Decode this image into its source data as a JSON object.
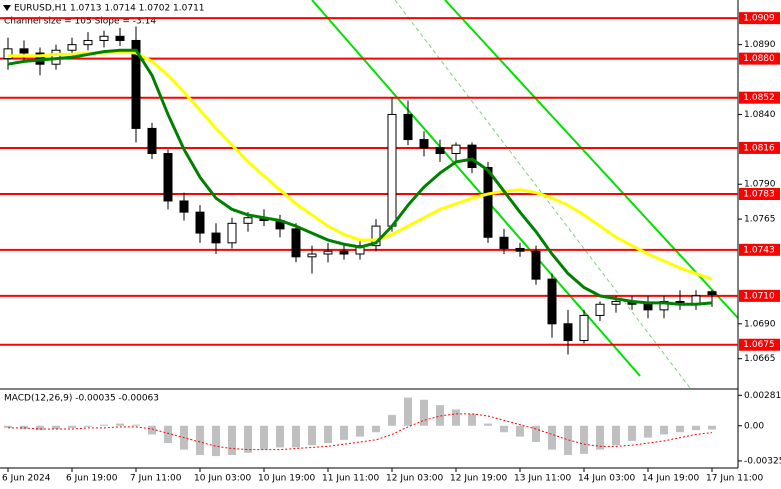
{
  "chart_data": [
    {
      "type": "candlestick",
      "title": "EURUSD,H1  1.0713 1.0714 1.0702 1.0711",
      "subtitle": "Channel size = 105 Slope = -3.14",
      "categories": [
        "6 Jun 2024",
        null,
        null,
        null,
        "6 Jun 19:00",
        null,
        null,
        null,
        "7 Jun 11:00",
        null,
        null,
        null,
        "10 Jun 03:00",
        null,
        null,
        null,
        "10 Jun 19:00",
        null,
        null,
        null,
        "11 Jun 11:00",
        null,
        null,
        null,
        "12 Jun 03:00",
        null,
        null,
        null,
        "12 Jun 19:00",
        null,
        null,
        null,
        "13 Jun 11:00",
        null,
        null,
        null,
        "14 Jun 03:00",
        null,
        null,
        null,
        "14 Jun 19:00",
        null,
        null,
        null,
        "17 Jun 11:00"
      ],
      "open": [
        1.088,
        1.0887,
        1.0884,
        1.0876,
        1.0886,
        1.089,
        1.0893,
        1.0896,
        1.0893,
        1.083,
        1.0812,
        1.0778,
        1.077,
        1.0755,
        1.0748,
        1.0762,
        1.0766,
        1.0764,
        1.0758,
        1.0738,
        1.074,
        1.0742,
        1.074,
        1.0746,
        1.076,
        1.084,
        1.0822,
        1.0816,
        1.0812,
        1.0818,
        1.0802,
        1.0752,
        1.0744,
        1.0742,
        1.0722,
        1.069,
        1.0678,
        1.0696,
        1.0704,
        1.0706,
        1.0704,
        1.07,
        1.0706,
        1.0704,
        1.0713
      ],
      "high": [
        1.0895,
        1.0893,
        1.0888,
        1.089,
        1.0895,
        1.0899,
        1.09,
        1.0902,
        1.0903,
        1.0834,
        1.0815,
        1.0784,
        1.0775,
        1.0762,
        1.0766,
        1.077,
        1.0772,
        1.0768,
        1.0762,
        1.0746,
        1.0748,
        1.0747,
        1.075,
        1.0765,
        1.0852,
        1.085,
        1.0828,
        1.0822,
        1.082,
        1.082,
        1.0806,
        1.0758,
        1.0748,
        1.0746,
        1.0726,
        1.07,
        1.07,
        1.0706,
        1.071,
        1.071,
        1.071,
        1.071,
        1.0714,
        1.0714,
        1.0714
      ],
      "low": [
        1.0872,
        1.0878,
        1.0868,
        1.0872,
        1.0882,
        1.0886,
        1.0888,
        1.0889,
        1.082,
        1.0808,
        1.0772,
        1.0764,
        1.0748,
        1.074,
        1.0744,
        1.0756,
        1.076,
        1.0752,
        1.0734,
        1.0726,
        1.0734,
        1.0736,
        1.0736,
        1.0742,
        1.0756,
        1.0818,
        1.081,
        1.0806,
        1.0806,
        1.0798,
        1.0748,
        1.074,
        1.0738,
        1.0718,
        1.068,
        1.0668,
        1.0676,
        1.0692,
        1.0698,
        1.07,
        1.0694,
        1.0694,
        1.07,
        1.07,
        1.0702
      ],
      "close": [
        1.0887,
        1.0884,
        1.0876,
        1.0886,
        1.089,
        1.0893,
        1.0896,
        1.0893,
        1.083,
        1.0812,
        1.0778,
        1.077,
        1.0755,
        1.0748,
        1.0762,
        1.0766,
        1.0764,
        1.0758,
        1.0738,
        1.074,
        1.0742,
        1.074,
        1.0746,
        1.076,
        1.084,
        1.0822,
        1.0816,
        1.0812,
        1.0818,
        1.0802,
        1.0752,
        1.0744,
        1.0742,
        1.0722,
        1.069,
        1.0678,
        1.0696,
        1.0704,
        1.0706,
        1.0704,
        1.07,
        1.0706,
        1.0704,
        1.071,
        1.0711
      ],
      "lines": [
        {
          "color": "#ffff00",
          "values": [
            1.0882,
            1.0882,
            1.0882,
            1.0883,
            1.0883,
            1.0884,
            1.0884,
            1.0885,
            1.0884,
            1.0878,
            1.0868,
            1.0856,
            1.0843,
            1.083,
            1.0818,
            1.0806,
            1.0796,
            1.0786,
            1.0776,
            1.0768,
            1.076,
            1.0754,
            1.075,
            1.075,
            1.0754,
            1.076,
            1.0766,
            1.0772,
            1.0776,
            1.078,
            1.0783,
            1.0785,
            1.0786,
            1.0784,
            1.078,
            1.0775,
            1.0768,
            1.076,
            1.0752,
            1.0746,
            1.074,
            1.0735,
            1.073,
            1.0726,
            1.0722
          ]
        },
        {
          "color": "#008000",
          "values": [
            1.0876,
            1.0878,
            1.0879,
            1.088,
            1.0881,
            1.0883,
            1.0885,
            1.0886,
            1.0886,
            1.0868,
            1.084,
            1.0815,
            1.0795,
            1.078,
            1.0772,
            1.0768,
            1.0766,
            1.0764,
            1.076,
            1.0755,
            1.075,
            1.0747,
            1.0745,
            1.0748,
            1.076,
            1.0775,
            1.0788,
            1.0798,
            1.0806,
            1.0808,
            1.08,
            1.0785,
            1.077,
            1.0756,
            1.074,
            1.0726,
            1.0716,
            1.071,
            1.0708,
            1.0706,
            1.0705,
            1.0705,
            1.0704,
            1.0704,
            1.0705
          ]
        }
      ],
      "levels": {
        "color": "#ff0000",
        "values": [
          {
            "value": 1.0909,
            "label": "1.0909"
          },
          {
            "value": 1.088,
            "label": "1.0880"
          },
          {
            "value": 1.0852,
            "label": "1.0852"
          },
          {
            "value": 1.0816,
            "label": "1.0816"
          },
          {
            "value": 1.0783,
            "label": "1.0783"
          },
          {
            "value": 1.0743,
            "label": "1.0743"
          },
          {
            "value": 1.071,
            "label": "1.0710"
          },
          {
            "value": 1.0675,
            "label": "1.0675"
          }
        ]
      },
      "ylim": [
        1.0644,
        1.0922
      ],
      "yticks": [
        {
          "value": 1.089,
          "label": "1.0890"
        },
        {
          "value": 1.084,
          "label": "1.0840"
        },
        {
          "value": 1.079,
          "label": "1.0790"
        },
        1.0765,
        {
          "value": 1.069,
          "label": "1.0690"
        },
        1.0665
      ]
    },
    {
      "type": "macd",
      "title": "MACD(12,26,9) -0.00035 -0.00063",
      "color": "#c0c0c0",
      "values": [
        -0.0002,
        -0.0003,
        -0.0004,
        -0.0003,
        -0.0002,
        -0.0001,
        0.0001,
        0.0002,
        0.0001,
        -0.0008,
        -0.0016,
        -0.0022,
        -0.0027,
        -0.0028,
        -0.0027,
        -0.0025,
        -0.0022,
        -0.002,
        -0.002,
        -0.0018,
        -0.0016,
        -0.0013,
        -0.001,
        -0.0006,
        0.001,
        0.0026,
        0.0024,
        0.0019,
        0.0015,
        0.0011,
        0.0002,
        -0.0006,
        -0.001,
        -0.0015,
        -0.0022,
        -0.0027,
        -0.0026,
        -0.0022,
        -0.0018,
        -0.0014,
        -0.0011,
        -0.0008,
        -0.0006,
        -0.0004,
        -0.00035
      ],
      "signal": {
        "color": "#ff0000",
        "values": [
          -0.0002,
          -0.0002,
          -0.0003,
          -0.0003,
          -0.0003,
          -0.0002,
          -0.0002,
          -0.0001,
          -0.0001,
          -0.0003,
          -0.0007,
          -0.0011,
          -0.0015,
          -0.0019,
          -0.0021,
          -0.0022,
          -0.0022,
          -0.0022,
          -0.0021,
          -0.002,
          -0.0019,
          -0.0017,
          -0.0015,
          -0.0013,
          -0.0008,
          -0.0001,
          0.0005,
          0.0009,
          0.0011,
          0.0011,
          0.0009,
          0.0005,
          0.0001,
          -0.0003,
          -0.0008,
          -0.0013,
          -0.0017,
          -0.0019,
          -0.0019,
          -0.0018,
          -0.0016,
          -0.0014,
          -0.0011,
          -0.0008,
          -0.00063
        ]
      },
      "ylim": [
        -0.0039,
        0.0033
      ],
      "yticks": [
        0.00281,
        {
          "value": 0,
          "label": "0.00"
        },
        -0.00325
      ]
    }
  ]
}
